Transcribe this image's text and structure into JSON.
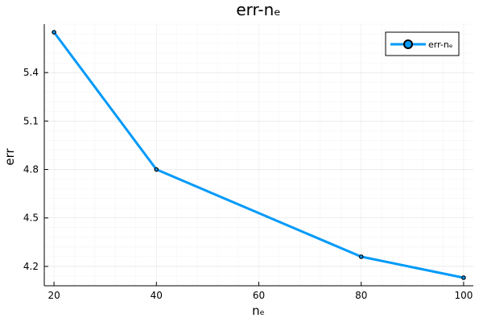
{
  "chart_data": {
    "type": "line",
    "title": "err-nₑ",
    "xlabel": "nₑ",
    "ylabel": "err",
    "x": [
      20,
      40,
      80,
      100
    ],
    "series": [
      {
        "name": "err-nₑ",
        "values": [
          5.65,
          4.8,
          4.26,
          4.13
        ],
        "color": "#009af9",
        "marker": "circle"
      }
    ],
    "xlim": [
      18.1,
      101.9
    ],
    "ylim": [
      4.08,
      5.7
    ],
    "xticks": [
      20,
      40,
      60,
      80,
      100
    ],
    "yticks": [
      4.2,
      4.5,
      4.8,
      5.1,
      5.4
    ],
    "ytick_labels": [
      "4.2",
      "4.5",
      "4.8",
      "5.1",
      "5.4"
    ],
    "grid": true,
    "legend_position": "top-right"
  }
}
